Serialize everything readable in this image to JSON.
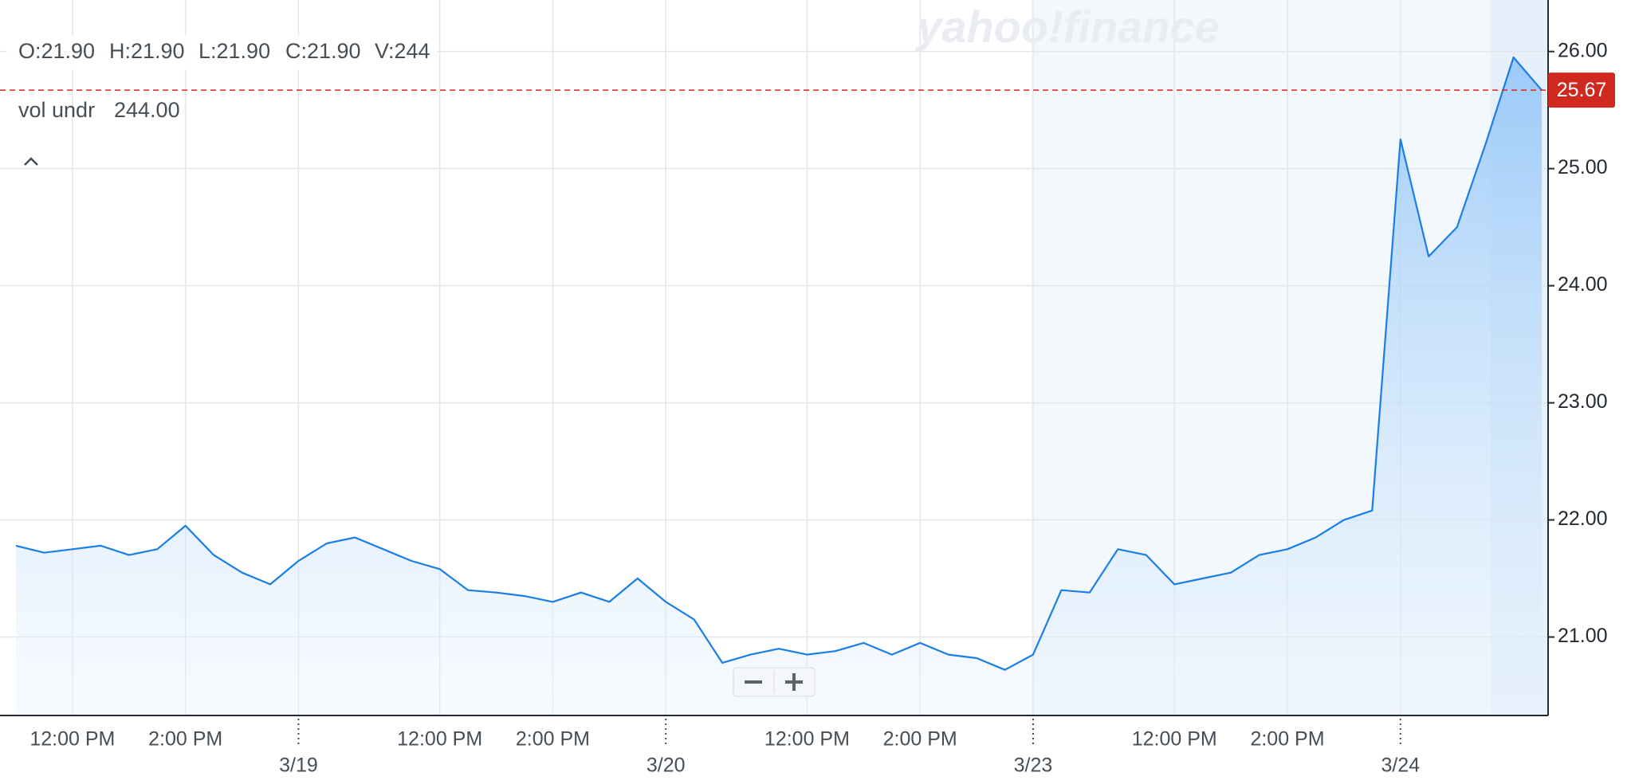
{
  "header": {
    "ohlcv": [
      "O:21.90",
      "H:21.90",
      "L:21.90",
      "C:21.90",
      "V:244"
    ],
    "study_name": "vol undr",
    "study_value": "244.00",
    "watermark": "yahoo!finance"
  },
  "chart_data": {
    "type": "line",
    "categories": [
      null,
      null,
      "12:00 PM",
      null,
      null,
      null,
      "2:00 PM",
      null,
      null,
      null,
      null,
      null,
      null,
      null,
      null,
      "12:00 PM",
      null,
      null,
      null,
      "2:00 PM",
      null,
      null,
      null,
      null,
      null,
      null,
      null,
      null,
      "12:00 PM",
      null,
      null,
      null,
      "2:00 PM",
      null,
      null,
      null,
      null,
      null,
      null,
      null,
      null,
      "12:00 PM",
      null,
      null,
      null,
      "2:00 PM",
      null,
      null,
      null,
      null,
      null,
      null,
      null,
      null,
      null
    ],
    "date_categories": [
      null,
      null,
      null,
      null,
      null,
      null,
      null,
      null,
      null,
      null,
      "3/19",
      null,
      null,
      null,
      null,
      null,
      null,
      null,
      null,
      null,
      null,
      null,
      null,
      "3/20",
      null,
      null,
      null,
      null,
      null,
      null,
      null,
      null,
      null,
      null,
      null,
      null,
      "3/23",
      null,
      null,
      null,
      null,
      null,
      null,
      null,
      null,
      null,
      null,
      null,
      null,
      "3/24",
      null,
      null,
      null,
      null,
      null
    ],
    "values": [
      21.78,
      21.72,
      21.75,
      21.78,
      21.7,
      21.75,
      21.95,
      21.7,
      21.55,
      21.45,
      21.65,
      21.8,
      21.85,
      21.75,
      21.65,
      21.58,
      21.4,
      21.38,
      21.35,
      21.3,
      21.38,
      21.3,
      21.5,
      21.3,
      21.15,
      20.78,
      20.85,
      20.9,
      20.85,
      20.88,
      20.95,
      20.85,
      20.95,
      20.85,
      20.82,
      20.72,
      20.85,
      21.4,
      21.38,
      21.75,
      21.7,
      21.45,
      21.5,
      21.55,
      21.7,
      21.75,
      21.85,
      22.0,
      22.08,
      25.25,
      24.25,
      24.5,
      25.2,
      25.95,
      25.67
    ],
    "color": "#1a7ee6",
    "last_price": 25.67,
    "last_price_color": "#d0291f",
    "ylim": [
      20.33,
      26.44
    ],
    "yticks": [
      {
        "value": 21,
        "label": "21.00"
      },
      {
        "value": 22,
        "label": "22.00"
      },
      {
        "value": 23,
        "label": "23.00"
      },
      {
        "value": 24,
        "label": "24.00"
      },
      {
        "value": 25,
        "label": "25.00"
      },
      {
        "value": 26,
        "label": "26.00"
      }
    ],
    "grid": true
  }
}
